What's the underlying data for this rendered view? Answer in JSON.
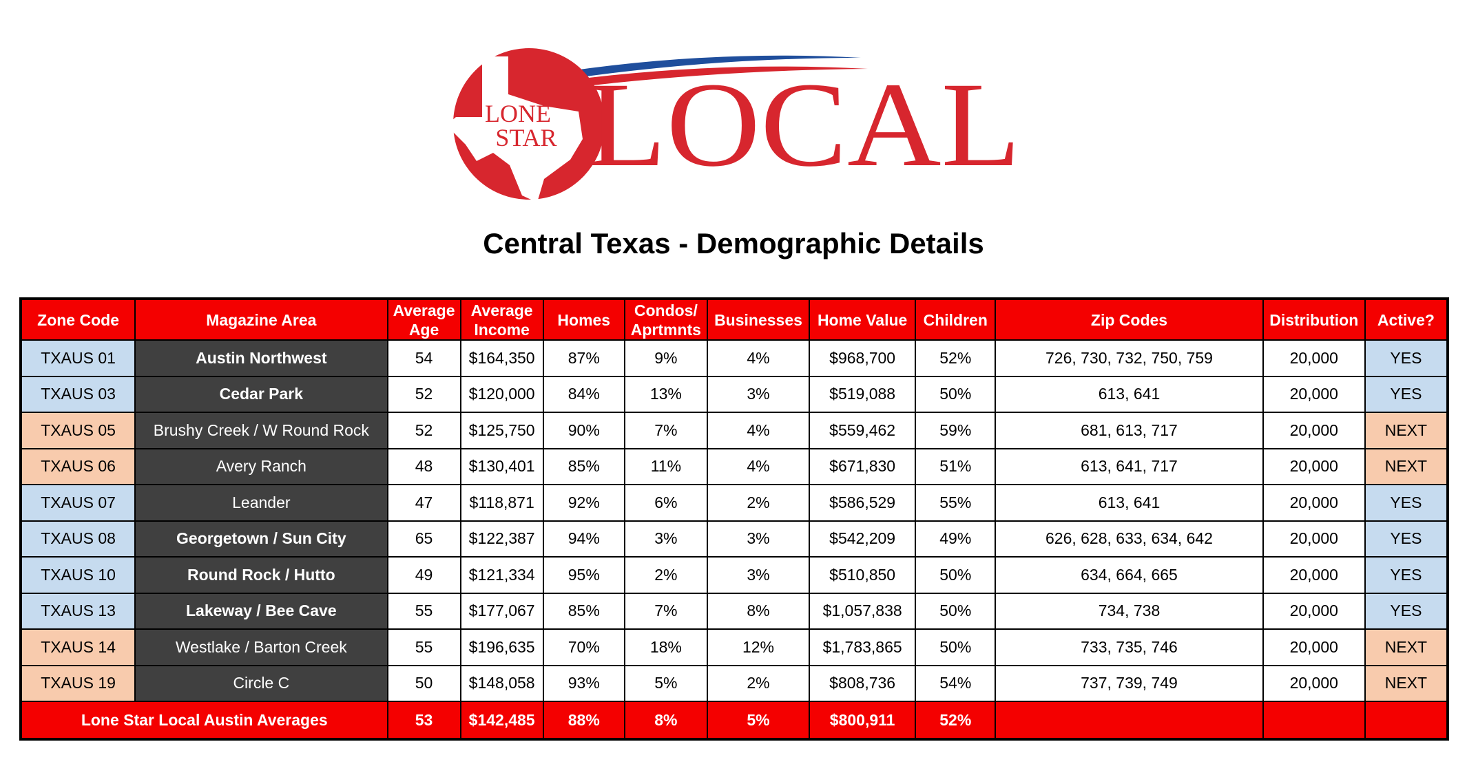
{
  "logo": {
    "brand_text_left": [
      "LONE",
      "STAR"
    ],
    "brand_text_right": "LOCAL",
    "colors": {
      "red": "#d7262e",
      "blue": "#1f4e9c"
    }
  },
  "title": "Central Texas - Demographic Details",
  "table": {
    "headers": {
      "zone_code": "Zone Code",
      "magazine_area": "Magazine Area",
      "average_age": "Average Age",
      "average_income": "Average Income",
      "homes": "Homes",
      "condos": "Condos/ Aprtmnts",
      "businesses": "Businesses",
      "home_value": "Home Value",
      "children": "Children",
      "zip_codes": "Zip Codes",
      "distribution": "Distribution",
      "active": "Active?"
    },
    "rows": [
      {
        "zone": "TXAUS 01",
        "area": "Austin Northwest",
        "age": "54",
        "income": "$164,350",
        "homes": "87%",
        "condos": "9%",
        "businesses": "4%",
        "home_value": "$968,700",
        "children": "52%",
        "zips": "726, 730, 732, 750, 759",
        "distribution": "20,000",
        "active": "YES"
      },
      {
        "zone": "TXAUS 03",
        "area": "Cedar Park",
        "age": "52",
        "income": "$120,000",
        "homes": "84%",
        "condos": "13%",
        "businesses": "3%",
        "home_value": "$519,088",
        "children": "50%",
        "zips": "613, 641",
        "distribution": "20,000",
        "active": "YES"
      },
      {
        "zone": "TXAUS 05",
        "area": "Brushy Creek / W Round Rock",
        "age": "52",
        "income": "$125,750",
        "homes": "90%",
        "condos": "7%",
        "businesses": "4%",
        "home_value": "$559,462",
        "children": "59%",
        "zips": "681, 613, 717",
        "distribution": "20,000",
        "active": "NEXT"
      },
      {
        "zone": "TXAUS 06",
        "area": "Avery Ranch",
        "age": "48",
        "income": "$130,401",
        "homes": "85%",
        "condos": "11%",
        "businesses": "4%",
        "home_value": "$671,830",
        "children": "51%",
        "zips": "613, 641, 717",
        "distribution": "20,000",
        "active": "NEXT"
      },
      {
        "zone": "TXAUS 07",
        "area": "Leander",
        "age": "47",
        "income": "$118,871",
        "homes": "92%",
        "condos": "6%",
        "businesses": "2%",
        "home_value": "$586,529",
        "children": "55%",
        "zips": "613, 641",
        "distribution": "20,000",
        "active": "YES"
      },
      {
        "zone": "TXAUS 08",
        "area": "Georgetown / Sun City",
        "age": "65",
        "income": "$122,387",
        "homes": "94%",
        "condos": "3%",
        "businesses": "3%",
        "home_value": "$542,209",
        "children": "49%",
        "zips": "626, 628, 633, 634, 642",
        "distribution": "20,000",
        "active": "YES"
      },
      {
        "zone": "TXAUS 10",
        "area": "Round Rock / Hutto",
        "age": "49",
        "income": "$121,334",
        "homes": "95%",
        "condos": "2%",
        "businesses": "3%",
        "home_value": "$510,850",
        "children": "50%",
        "zips": "634, 664, 665",
        "distribution": "20,000",
        "active": "YES"
      },
      {
        "zone": "TXAUS 13",
        "area": "Lakeway / Bee Cave",
        "age": "55",
        "income": "$177,067",
        "homes": "85%",
        "condos": "7%",
        "businesses": "8%",
        "home_value": "$1,057,838",
        "children": "50%",
        "zips": "734, 738",
        "distribution": "20,000",
        "active": "YES"
      },
      {
        "zone": "TXAUS 14",
        "area": "Westlake / Barton Creek",
        "age": "55",
        "income": "$196,635",
        "homes": "70%",
        "condos": "18%",
        "businesses": "12%",
        "home_value": "$1,783,865",
        "children": "50%",
        "zips": "733, 735, 746",
        "distribution": "20,000",
        "active": "NEXT"
      },
      {
        "zone": "TXAUS 19",
        "area": "Circle C",
        "age": "50",
        "income": "$148,058",
        "homes": "93%",
        "condos": "5%",
        "businesses": "2%",
        "home_value": "$808,736",
        "children": "54%",
        "zips": "737, 739, 749",
        "distribution": "20,000",
        "active": "NEXT"
      }
    ],
    "footer": {
      "label": "Lone Star Local Austin Averages",
      "age": "53",
      "income": "$142,485",
      "homes": "88%",
      "condos": "8%",
      "businesses": "5%",
      "home_value": "$800,911",
      "children": "52%"
    }
  }
}
